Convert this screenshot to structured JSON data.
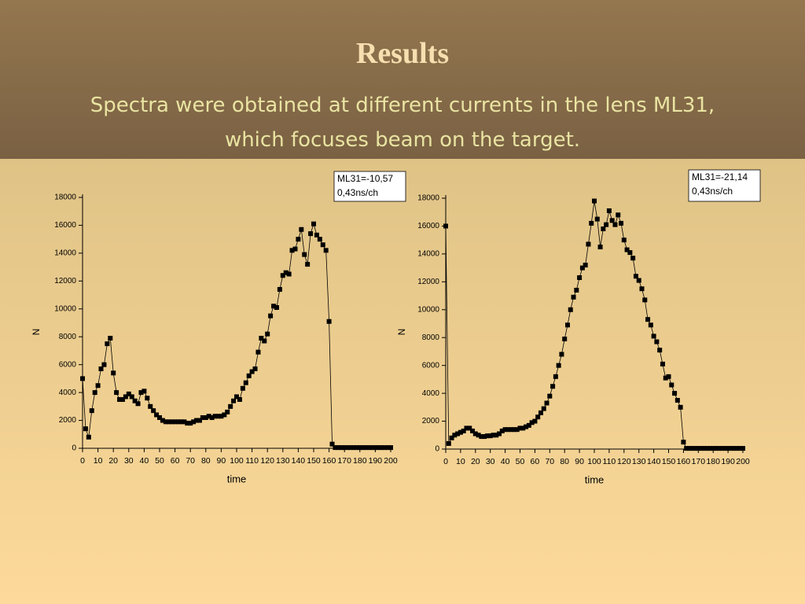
{
  "slide": {
    "title": "Results",
    "subtitle": "Spectra were obtained at different currents in the lens ML31, which focuses beam on the target."
  },
  "chart_data": [
    {
      "type": "line",
      "annotation": [
        "ML31=-10,57",
        "0,43ns/ch"
      ],
      "x_label": "time",
      "y_label": "N",
      "color": "#000000",
      "x": [
        0,
        2,
        4,
        6,
        8,
        10,
        12,
        14,
        16,
        18,
        20,
        22,
        24,
        26,
        28,
        30,
        32,
        34,
        36,
        38,
        40,
        42,
        44,
        46,
        48,
        50,
        52,
        54,
        56,
        58,
        60,
        62,
        64,
        66,
        68,
        70,
        72,
        74,
        76,
        78,
        80,
        82,
        84,
        86,
        88,
        90,
        92,
        94,
        96,
        98,
        100,
        102,
        104,
        106,
        108,
        110,
        112,
        114,
        116,
        118,
        120,
        122,
        124,
        126,
        128,
        130,
        132,
        134,
        136,
        138,
        140,
        142,
        144,
        146,
        148,
        150,
        152,
        154,
        156,
        158,
        160,
        162,
        164,
        166,
        168,
        170,
        172,
        174,
        176,
        178,
        180,
        182,
        184,
        186,
        188,
        190,
        192,
        194,
        196,
        198,
        200
      ],
      "values": [
        5000,
        1400,
        800,
        2700,
        4000,
        4500,
        5700,
        6000,
        7500,
        7900,
        5400,
        4000,
        3500,
        3500,
        3700,
        3900,
        3700,
        3400,
        3200,
        4000,
        4100,
        3600,
        3000,
        2700,
        2400,
        2200,
        2000,
        1900,
        1900,
        1900,
        1900,
        1900,
        1900,
        1900,
        1800,
        1800,
        1900,
        2000,
        2000,
        2200,
        2200,
        2300,
        2200,
        2300,
        2300,
        2300,
        2400,
        2600,
        3000,
        3400,
        3700,
        3500,
        4300,
        4700,
        5200,
        5500,
        5700,
        6900,
        7900,
        7700,
        8200,
        9500,
        10200,
        10100,
        11400,
        12400,
        12600,
        12500,
        14200,
        14300,
        15000,
        15700,
        13900,
        13200,
        15400,
        16100,
        15300,
        15000,
        14600,
        14200,
        9100,
        300,
        50,
        50,
        50,
        50,
        50,
        50,
        50,
        50,
        50,
        50,
        50,
        50,
        50,
        50,
        50,
        50,
        50,
        50,
        50
      ],
      "xlim": [
        0,
        200
      ],
      "ylim": [
        0,
        18000
      ],
      "xticks": [
        0,
        10,
        20,
        30,
        40,
        50,
        60,
        70,
        80,
        90,
        100,
        110,
        120,
        130,
        140,
        150,
        160,
        170,
        180,
        190,
        200
      ],
      "yticks": [
        0,
        2000,
        4000,
        6000,
        8000,
        10000,
        12000,
        14000,
        16000,
        18000
      ]
    },
    {
      "type": "line",
      "annotation": [
        "ML31=-21,14",
        "0,43ns/ch"
      ],
      "x_label": "time",
      "y_label": "N",
      "color": "#000000",
      "x": [
        0,
        2,
        4,
        6,
        8,
        10,
        12,
        14,
        16,
        18,
        20,
        22,
        24,
        26,
        28,
        30,
        32,
        34,
        36,
        38,
        40,
        42,
        44,
        46,
        48,
        50,
        52,
        54,
        56,
        58,
        60,
        62,
        64,
        66,
        68,
        70,
        72,
        74,
        76,
        78,
        80,
        82,
        84,
        86,
        88,
        90,
        92,
        94,
        96,
        98,
        100,
        102,
        104,
        106,
        108,
        110,
        112,
        114,
        116,
        118,
        120,
        122,
        124,
        126,
        128,
        130,
        132,
        134,
        136,
        138,
        140,
        142,
        144,
        146,
        148,
        150,
        152,
        154,
        156,
        158,
        160,
        162,
        164,
        166,
        168,
        170,
        172,
        174,
        176,
        178,
        180,
        182,
        184,
        186,
        188,
        190,
        192,
        194,
        196,
        198,
        200
      ],
      "values": [
        16000,
        400,
        800,
        1000,
        1100,
        1200,
        1300,
        1500,
        1500,
        1300,
        1100,
        1000,
        900,
        900,
        950,
        950,
        1000,
        1000,
        1100,
        1300,
        1400,
        1400,
        1400,
        1400,
        1400,
        1500,
        1500,
        1600,
        1700,
        1900,
        2000,
        2300,
        2600,
        2900,
        3300,
        3800,
        4500,
        5200,
        6000,
        6800,
        7900,
        8900,
        10000,
        10900,
        11400,
        12300,
        13000,
        13200,
        14700,
        16200,
        17800,
        16500,
        14500,
        15800,
        16100,
        17100,
        16400,
        16100,
        16800,
        16200,
        15000,
        14300,
        14100,
        13700,
        12400,
        12100,
        11500,
        10700,
        9300,
        8900,
        8100,
        7700,
        7100,
        6100,
        5100,
        5200,
        4600,
        4000,
        3500,
        3000,
        500,
        50,
        50,
        50,
        50,
        50,
        50,
        50,
        50,
        50,
        50,
        50,
        50,
        50,
        50,
        50,
        50,
        50,
        50,
        50,
        50
      ],
      "xlim": [
        0,
        200
      ],
      "ylim": [
        0,
        18000
      ],
      "xticks": [
        0,
        10,
        20,
        30,
        40,
        50,
        60,
        70,
        80,
        90,
        100,
        110,
        120,
        130,
        140,
        150,
        160,
        170,
        180,
        190,
        200
      ],
      "yticks": [
        0,
        2000,
        4000,
        6000,
        8000,
        10000,
        12000,
        14000,
        16000,
        18000
      ]
    }
  ]
}
